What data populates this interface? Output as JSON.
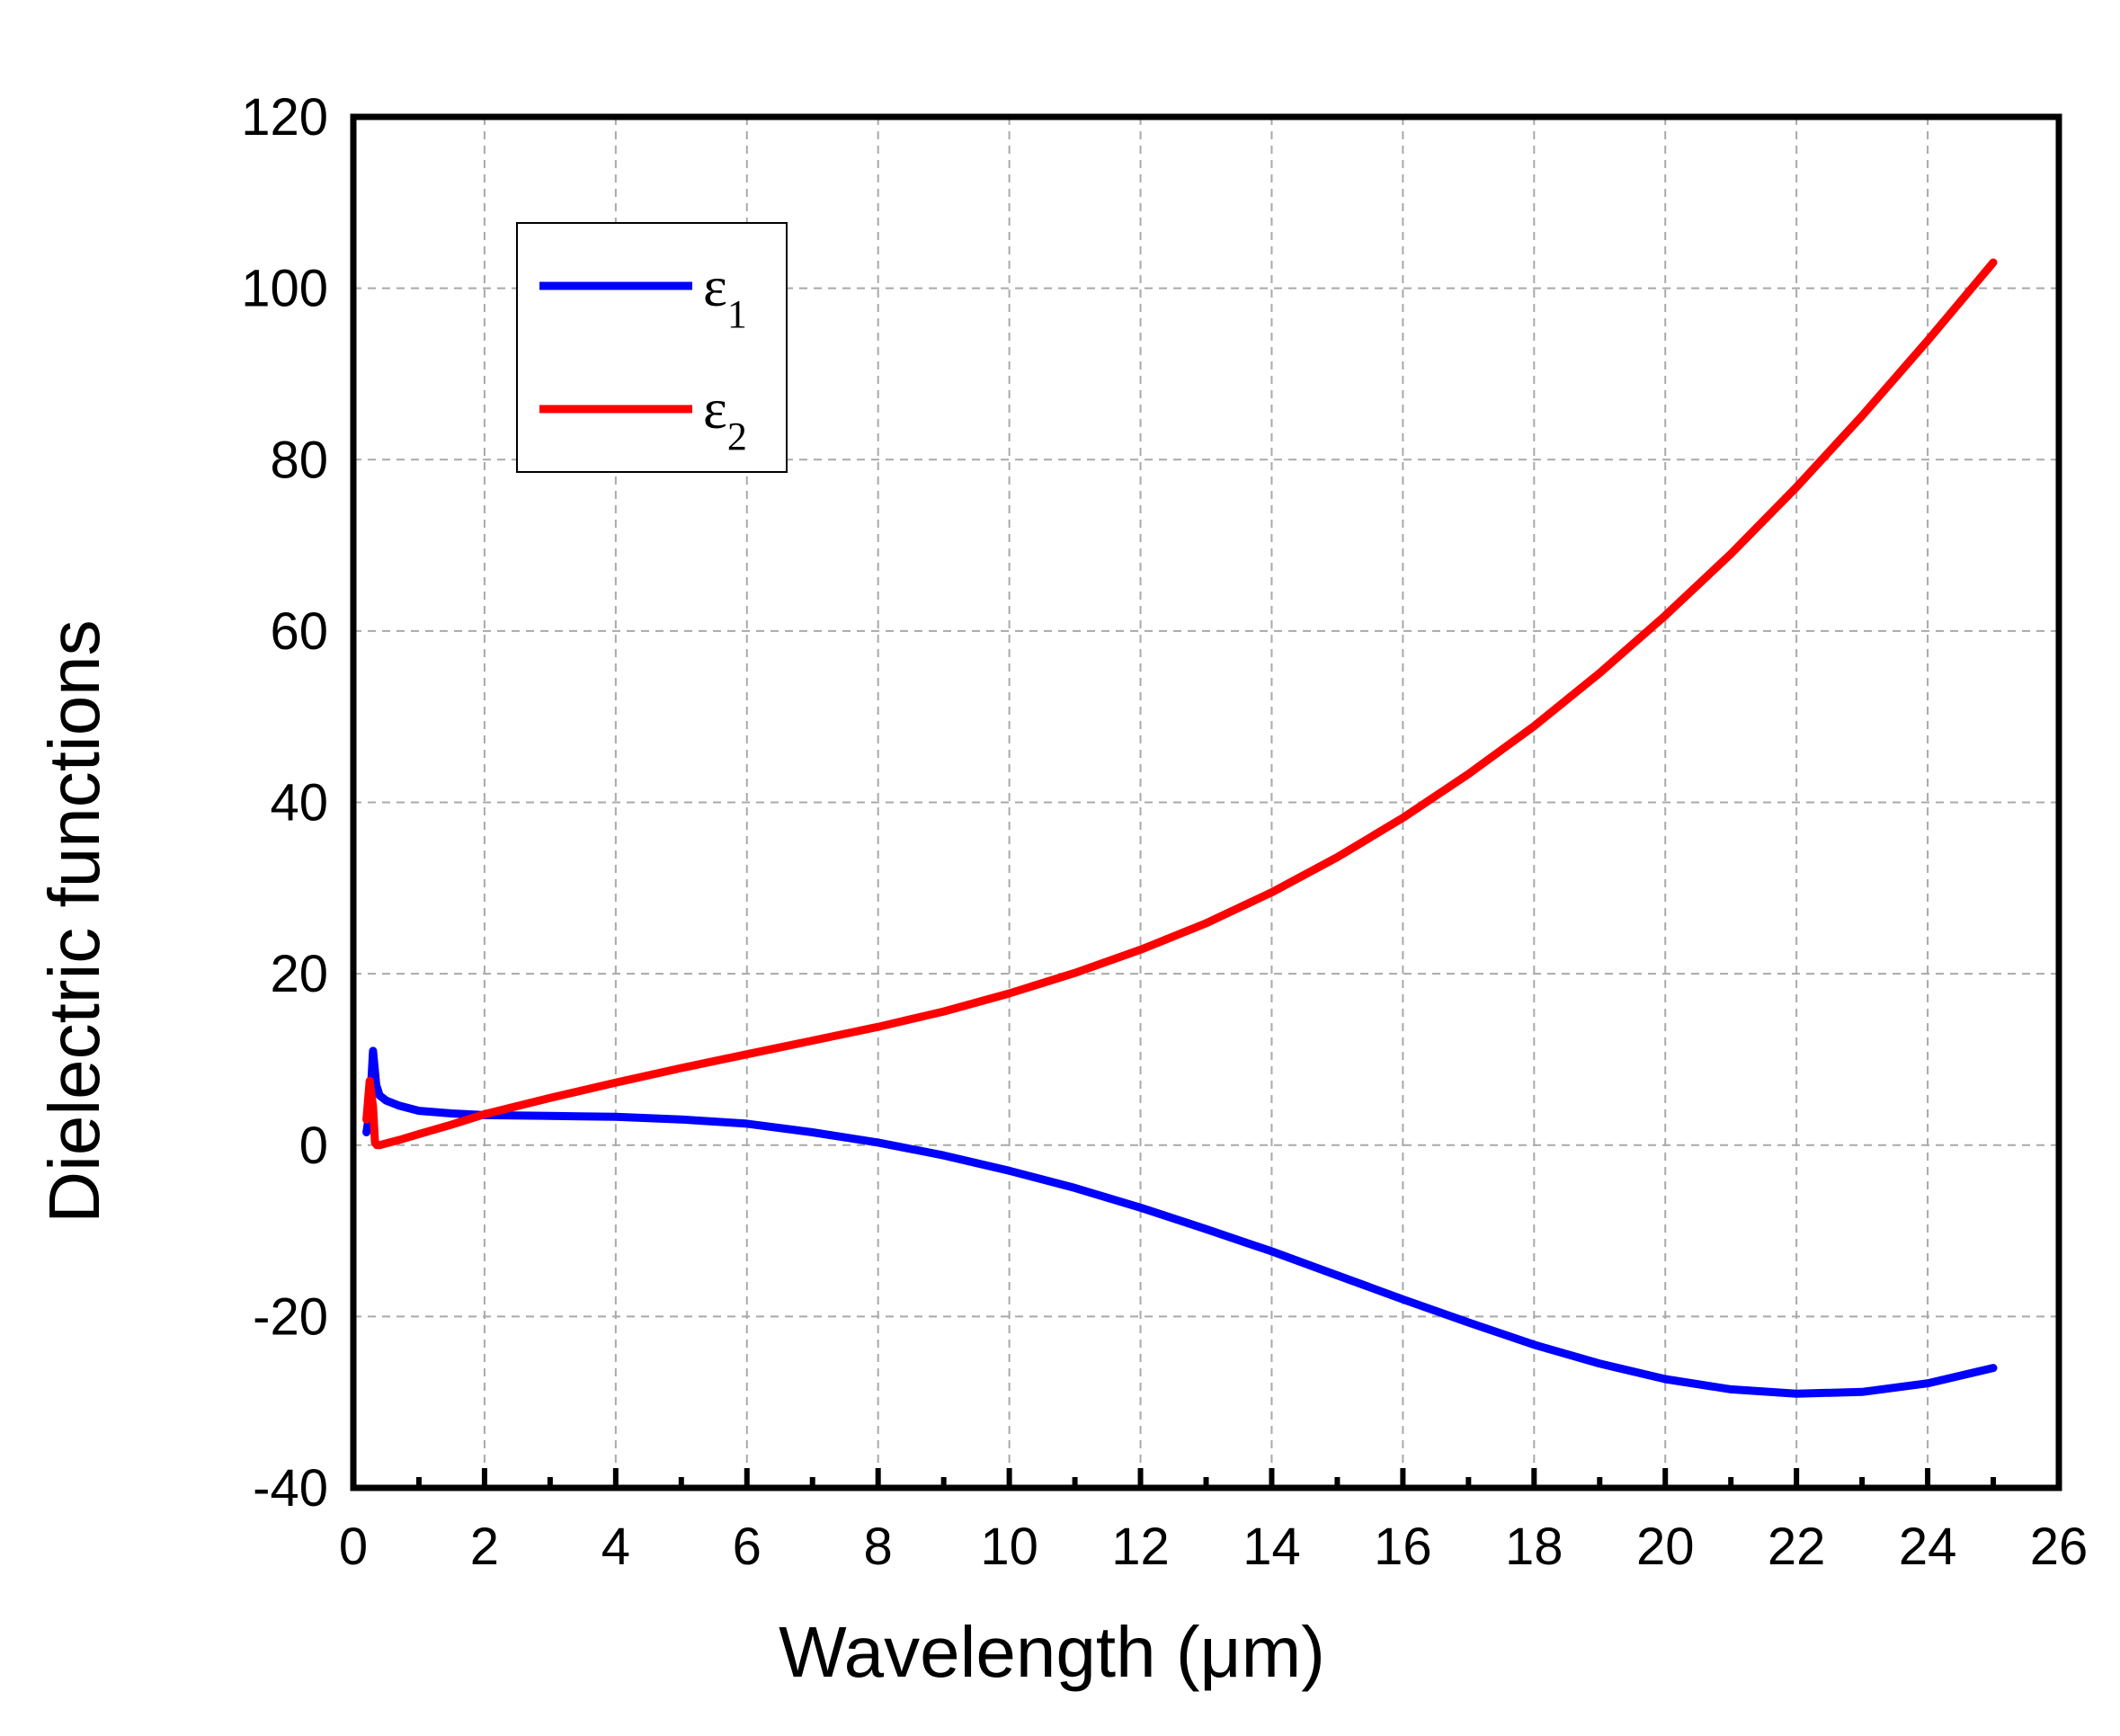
{
  "chart_data": {
    "type": "line",
    "xlabel": "Wavelength (μm)",
    "ylabel": "Dielectric functions",
    "xlim": [
      0,
      26
    ],
    "ylim": [
      -40,
      120
    ],
    "xticks": [
      0,
      2,
      4,
      6,
      8,
      10,
      12,
      14,
      16,
      18,
      20,
      22,
      24,
      26
    ],
    "yticks": [
      -40,
      -20,
      0,
      20,
      40,
      60,
      80,
      100,
      120
    ],
    "grid": true,
    "legend_position": "top-left",
    "series": [
      {
        "name": "ε1",
        "name_base": "ε",
        "name_sub": "1",
        "color": "#0000ff",
        "x": [
          0.2,
          0.25,
          0.3,
          0.35,
          0.4,
          0.5,
          0.7,
          1,
          1.5,
          2,
          3,
          4,
          5,
          6,
          7,
          8,
          9,
          10,
          11,
          12,
          13,
          14,
          15,
          16,
          17,
          18,
          19,
          20,
          21,
          22,
          23,
          24,
          25
        ],
        "y": [
          1.5,
          4,
          11,
          7,
          5.8,
          5.2,
          4.6,
          4.0,
          3.7,
          3.5,
          3.4,
          3.3,
          3.0,
          2.5,
          1.5,
          0.3,
          -1.2,
          -3.0,
          -5.0,
          -7.3,
          -9.8,
          -12.4,
          -15.2,
          -18.0,
          -20.7,
          -23.3,
          -25.5,
          -27.3,
          -28.5,
          -29.0,
          -28.8,
          -27.8,
          -26.0
        ]
      },
      {
        "name": "ε2",
        "name_base": "ε",
        "name_sub": "2",
        "color": "#ff0000",
        "x": [
          0.2,
          0.25,
          0.3,
          0.33,
          0.36,
          0.4,
          0.5,
          0.7,
          1,
          1.5,
          2,
          3,
          4,
          5,
          6,
          7,
          8,
          9,
          10,
          11,
          12,
          13,
          14,
          15,
          16,
          17,
          18,
          19,
          20,
          21,
          22,
          23,
          24,
          25
        ],
        "y": [
          3,
          7.5,
          4.5,
          0.3,
          0,
          0,
          0.2,
          0.6,
          1.3,
          2.4,
          3.6,
          5.5,
          7.3,
          9.0,
          10.6,
          12.2,
          13.8,
          15.6,
          17.7,
          20.1,
          22.8,
          25.9,
          29.5,
          33.6,
          38.2,
          43.3,
          48.9,
          55.1,
          61.8,
          69.0,
          76.8,
          85.1,
          93.9,
          103.0
        ]
      }
    ]
  }
}
